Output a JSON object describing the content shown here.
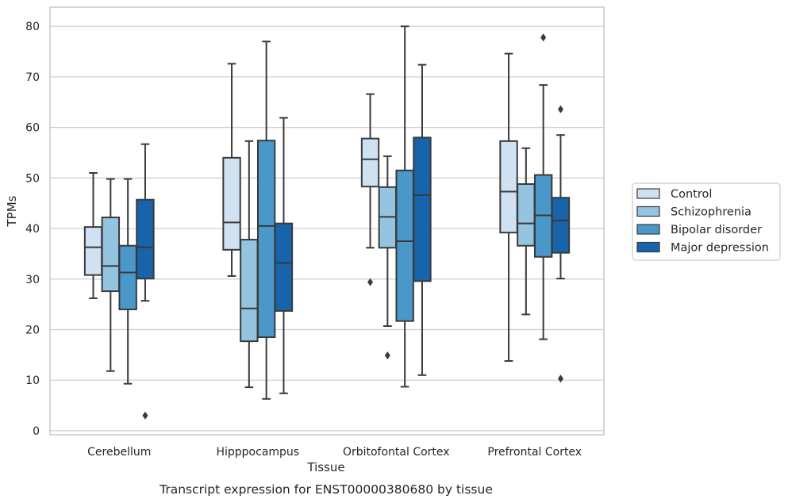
{
  "chart_data": {
    "type": "box",
    "xlabel": "Tissue",
    "ylabel": "TPMs",
    "caption": "Transcript expression for ENST00000380680 by tissue",
    "ylim": [
      -0.8,
      83.8
    ],
    "yticks": [
      0,
      10,
      20,
      30,
      40,
      50,
      60,
      70,
      80
    ],
    "grid": true,
    "legend_position": "right",
    "categories": [
      "Cerebellum",
      "Hipppocampus",
      "Orbitofontal Cortex",
      "Prefrontal Cortex"
    ],
    "series": [
      {
        "name": "Control",
        "color": "#d0e1f2",
        "boxes": [
          {
            "whislo": 26.2,
            "q1": 30.8,
            "med": 36.3,
            "q3": 40.3,
            "whishi": 51.0,
            "fliers": []
          },
          {
            "whislo": 30.6,
            "q1": 35.8,
            "med": 41.2,
            "q3": 54.0,
            "whishi": 72.6,
            "fliers": []
          },
          {
            "whislo": 36.2,
            "q1": 48.3,
            "med": 53.7,
            "q3": 57.8,
            "whishi": 66.6,
            "fliers": [
              29.4
            ]
          },
          {
            "whislo": 13.8,
            "q1": 39.2,
            "med": 47.3,
            "q3": 57.3,
            "whishi": 74.6,
            "fliers": []
          }
        ]
      },
      {
        "name": "Schizophrenia",
        "color": "#94c4df",
        "boxes": [
          {
            "whislo": 11.8,
            "q1": 27.6,
            "med": 32.6,
            "q3": 42.2,
            "whishi": 49.8,
            "fliers": []
          },
          {
            "whislo": 8.6,
            "q1": 17.7,
            "med": 24.2,
            "q3": 37.8,
            "whishi": 57.3,
            "fliers": []
          },
          {
            "whislo": 20.7,
            "q1": 36.2,
            "med": 42.3,
            "q3": 48.2,
            "whishi": 54.3,
            "fliers": [
              14.9
            ]
          },
          {
            "whislo": 23.0,
            "q1": 36.6,
            "med": 41.0,
            "q3": 48.8,
            "whishi": 55.9,
            "fliers": []
          }
        ]
      },
      {
        "name": "Bipolar disorder",
        "color": "#4a98c9",
        "boxes": [
          {
            "whislo": 9.3,
            "q1": 24.0,
            "med": 31.3,
            "q3": 36.6,
            "whishi": 49.8,
            "fliers": []
          },
          {
            "whislo": 6.3,
            "q1": 18.5,
            "med": 40.5,
            "q3": 57.4,
            "whishi": 77.0,
            "fliers": []
          },
          {
            "whislo": 8.7,
            "q1": 21.7,
            "med": 37.5,
            "q3": 51.5,
            "whishi": 80.0,
            "fliers": []
          },
          {
            "whislo": 18.1,
            "q1": 34.4,
            "med": 42.6,
            "q3": 50.6,
            "whishi": 68.4,
            "fliers": [
              77.8
            ]
          }
        ]
      },
      {
        "name": "Major depression",
        "color": "#1764ab",
        "boxes": [
          {
            "whislo": 25.7,
            "q1": 30.1,
            "med": 36.3,
            "q3": 45.7,
            "whishi": 56.7,
            "fliers": [
              3.0
            ]
          },
          {
            "whislo": 7.4,
            "q1": 23.7,
            "med": 33.2,
            "q3": 41.0,
            "whishi": 61.9,
            "fliers": []
          },
          {
            "whislo": 11.0,
            "q1": 29.6,
            "med": 46.6,
            "q3": 58.0,
            "whishi": 72.4,
            "fliers": []
          },
          {
            "whislo": 30.1,
            "q1": 35.2,
            "med": 41.6,
            "q3": 46.1,
            "whishi": 58.5,
            "fliers": [
              10.3,
              63.6
            ]
          }
        ]
      }
    ]
  }
}
